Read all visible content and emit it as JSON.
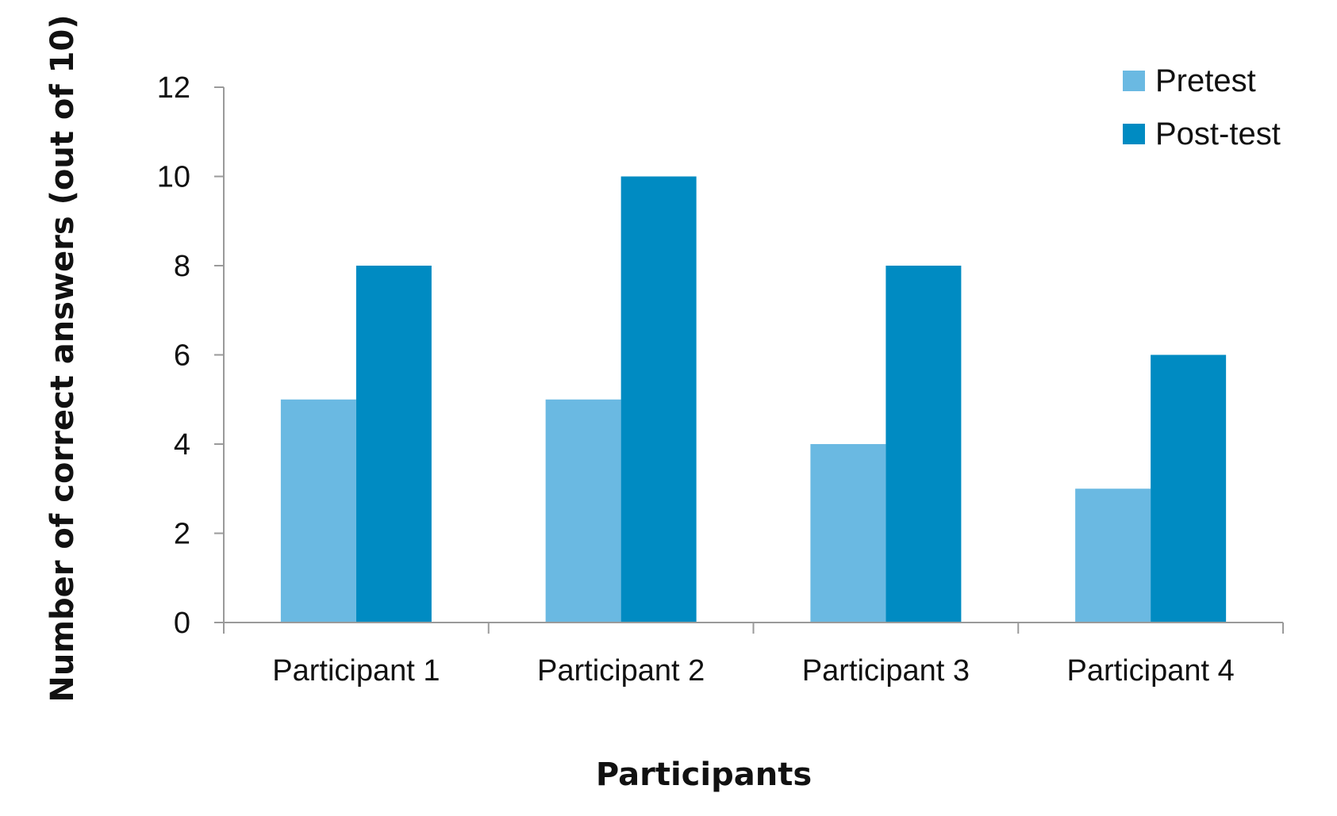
{
  "chart_data": {
    "type": "bar",
    "title": "",
    "xlabel": "Participants",
    "ylabel": "Number of correct answers (out of 10)",
    "categories": [
      "Participant 1",
      "Participant 2",
      "Participant 3",
      "Participant 4"
    ],
    "series": [
      {
        "name": "Pretest",
        "values": [
          5,
          5,
          4,
          3
        ],
        "color": "#6ab9e2"
      },
      {
        "name": "Post-test",
        "values": [
          8,
          10,
          8,
          6
        ],
        "color": "#008bc2"
      }
    ],
    "ylim": [
      0,
      12
    ],
    "yticks": [
      "0",
      "2",
      "4",
      "6",
      "8",
      "10",
      "12"
    ],
    "grid": false,
    "legend_position": "top-right"
  }
}
